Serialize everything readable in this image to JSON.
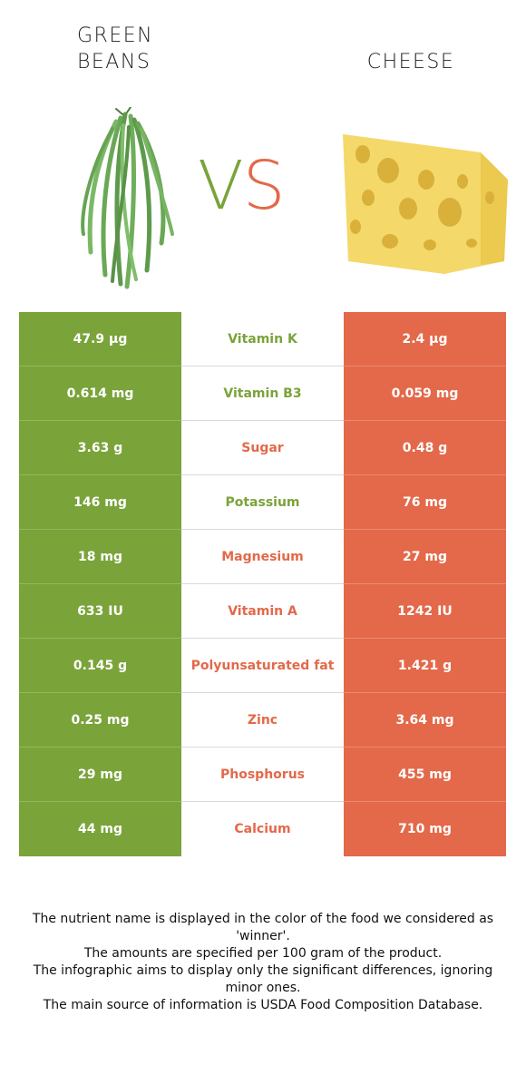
{
  "left_food": {
    "title_line1": "GREEN",
    "title_line2": "BEANS"
  },
  "right_food": {
    "title": "CHEESE"
  },
  "vs": {
    "v": "V",
    "s": "S"
  },
  "colors": {
    "left": "#7aa33a",
    "right": "#e3694a"
  },
  "rows": [
    {
      "left": "47.9 µg",
      "nutrient": "Vitamin K",
      "right": "2.4 µg",
      "winner": "left"
    },
    {
      "left": "0.614 mg",
      "nutrient": "Vitamin B3",
      "right": "0.059 mg",
      "winner": "left"
    },
    {
      "left": "3.63 g",
      "nutrient": "Sugar",
      "right": "0.48 g",
      "winner": "right"
    },
    {
      "left": "146 mg",
      "nutrient": "Potassium",
      "right": "76 mg",
      "winner": "left"
    },
    {
      "left": "18 mg",
      "nutrient": "Magnesium",
      "right": "27 mg",
      "winner": "right"
    },
    {
      "left": "633 IU",
      "nutrient": "Vitamin A",
      "right": "1242 IU",
      "winner": "right"
    },
    {
      "left": "0.145 g",
      "nutrient": "Polyunsaturated fat",
      "right": "1.421 g",
      "winner": "right"
    },
    {
      "left": "0.25 mg",
      "nutrient": "Zinc",
      "right": "3.64 mg",
      "winner": "right"
    },
    {
      "left": "29 mg",
      "nutrient": "Phosphorus",
      "right": "455 mg",
      "winner": "right"
    },
    {
      "left": "44 mg",
      "nutrient": "Calcium",
      "right": "710 mg",
      "winner": "right"
    }
  ],
  "notes": [
    "The nutrient name is displayed in the color of the food we considered as 'winner'.",
    "The amounts are specified per 100 gram of the product.",
    "The infographic aims to display only the significant differences, ignoring minor ones.",
    "The main source of information is USDA Food Composition Database."
  ]
}
